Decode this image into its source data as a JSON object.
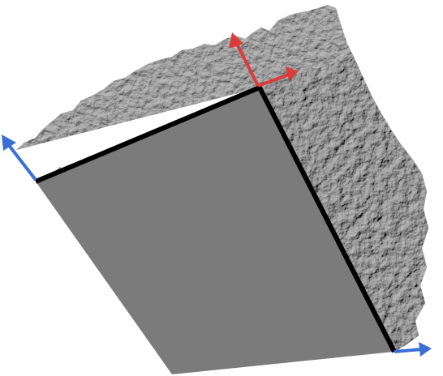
{
  "scene": {
    "background_color": "#ffffff",
    "flat_face_color": "#7b7b7b",
    "rough_surface_color": "#6f6f6f",
    "rough_surface_highlight": "#a9a9a9",
    "rough_surface_shadow": "#4a4a4a",
    "edge_color": "#000000"
  },
  "axes": {
    "red_axis_color": "#dd3b3b",
    "blue_axis_color": "#3a6fd8"
  }
}
